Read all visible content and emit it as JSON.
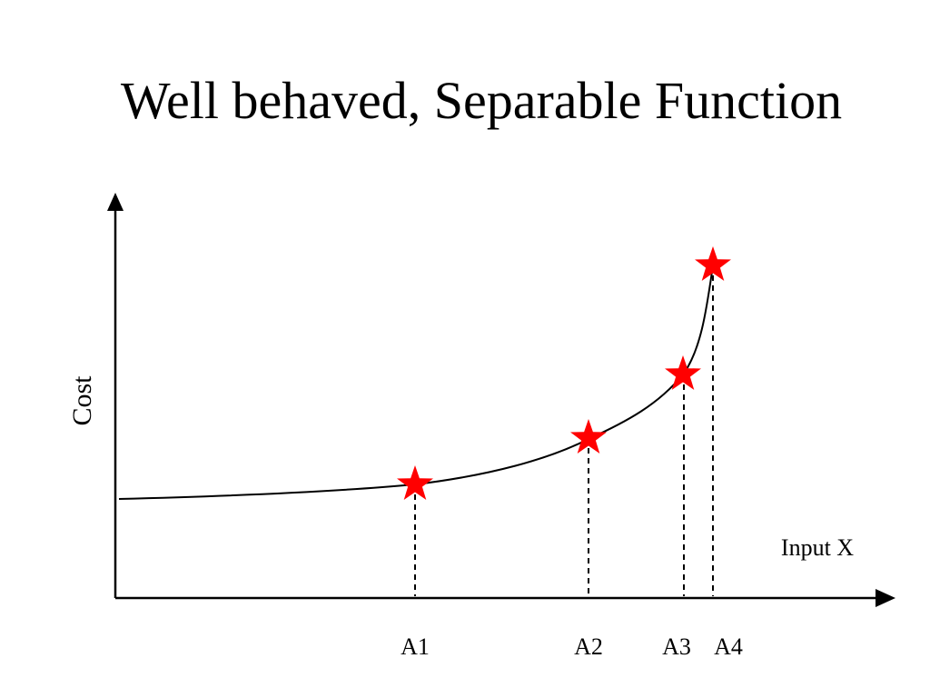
{
  "title": "Well behaved, Separable Function",
  "diagram": {
    "y_axis_label": "Cost",
    "x_axis_label": "Input X",
    "points": [
      {
        "label": "A1"
      },
      {
        "label": "A2"
      },
      {
        "label": "A3"
      },
      {
        "label": "A4"
      }
    ],
    "colors": {
      "star": "#ff0000",
      "line": "#000000"
    },
    "icons": [
      "star-icon",
      "arrow-head-icon"
    ]
  }
}
